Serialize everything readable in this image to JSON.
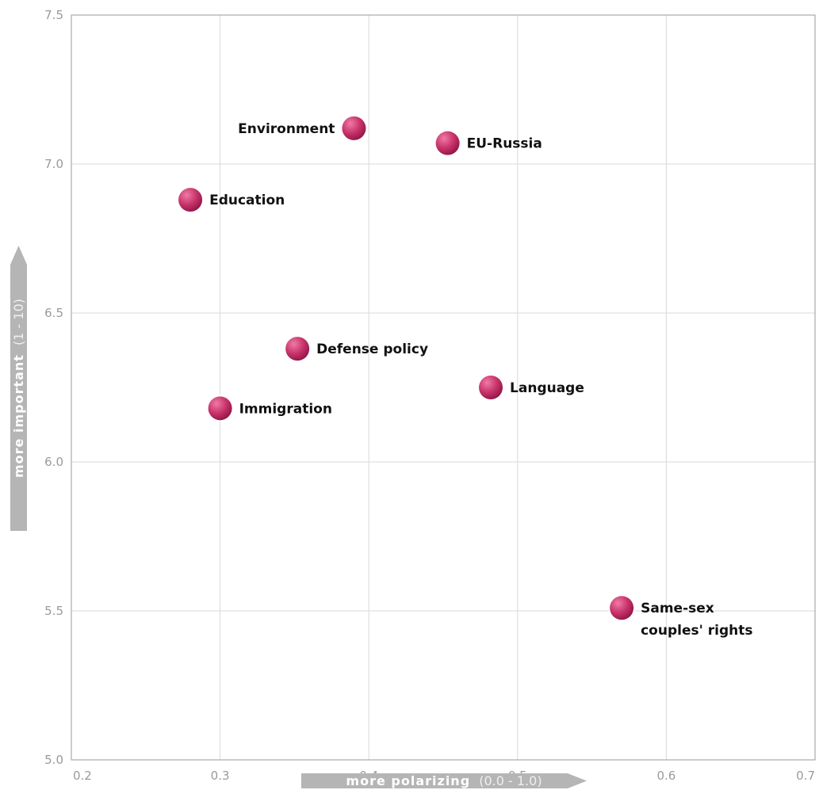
{
  "chart_data": {
    "type": "scatter",
    "title": "",
    "xlabel": "more polarizing",
    "xlabel_range": "(0.0 - 1.0)",
    "ylabel": "more important",
    "ylabel_range": "(1 - 10)",
    "xlim": [
      0.2,
      0.7
    ],
    "ylim": [
      5.0,
      7.5
    ],
    "x_ticks": [
      "0.2",
      "0.3",
      "0.4",
      "0.5",
      "0.6",
      "0.7"
    ],
    "y_ticks": [
      "5.0",
      "5.5",
      "6.0",
      "6.5",
      "7.0",
      "7.5"
    ],
    "grid": true,
    "marker_color": "#c8336a",
    "points": [
      {
        "label": "Environment",
        "x": 0.39,
        "y": 7.12,
        "label_side": "left"
      },
      {
        "label": "EU-Russia",
        "x": 0.453,
        "y": 7.07,
        "label_side": "right"
      },
      {
        "label": "Education",
        "x": 0.28,
        "y": 6.88,
        "label_side": "right"
      },
      {
        "label": "Defense policy",
        "x": 0.352,
        "y": 6.38,
        "label_side": "right"
      },
      {
        "label": "Language",
        "x": 0.482,
        "y": 6.25,
        "label_side": "right"
      },
      {
        "label": "Immigration",
        "x": 0.3,
        "y": 6.18,
        "label_side": "right"
      },
      {
        "label": "Same-sex\ncouples' rights",
        "x": 0.57,
        "y": 5.51,
        "label_side": "right"
      }
    ]
  }
}
